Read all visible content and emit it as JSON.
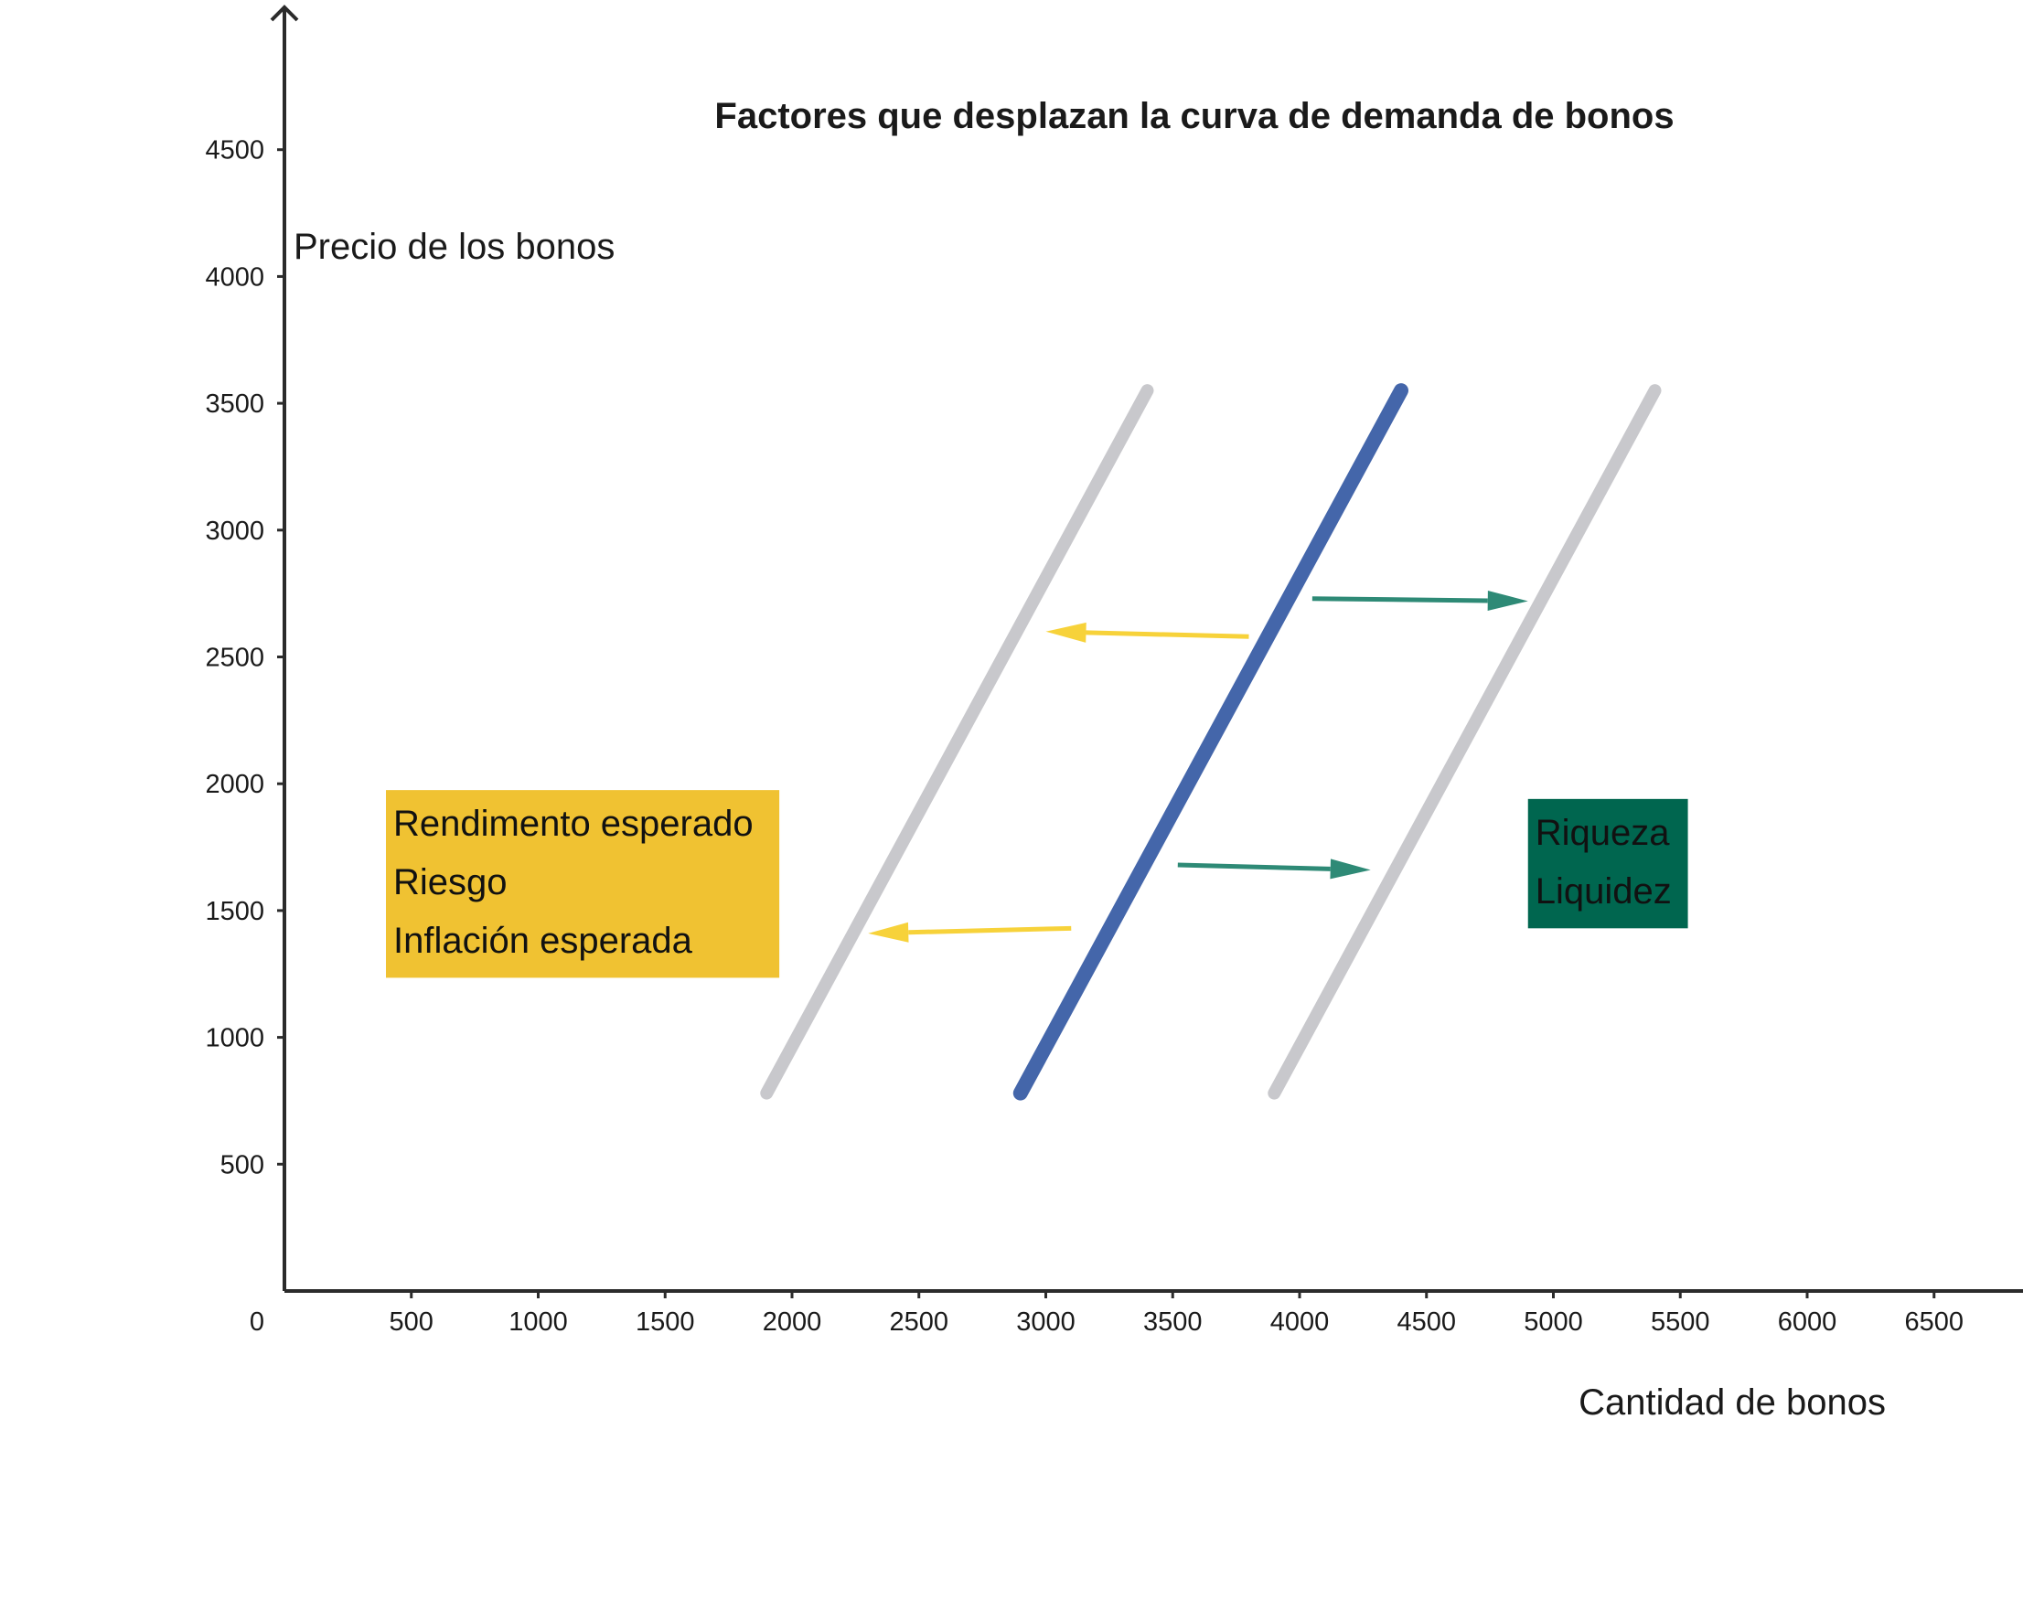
{
  "chart_data": {
    "type": "line",
    "title": "Factores que desplazan la curva de demanda de bonos",
    "xlabel": "Cantidad de bonos",
    "ylabel": "Precio de los bonos",
    "xlim": [
      0,
      6900
    ],
    "ylim": [
      0,
      5050
    ],
    "x_ticks": [
      0,
      500,
      1000,
      1500,
      2000,
      2500,
      3000,
      3500,
      4000,
      4500,
      5000,
      5500,
      6000,
      6500
    ],
    "y_ticks": [
      500,
      1000,
      1500,
      2000,
      2500,
      3000,
      3500,
      4000,
      4500
    ],
    "grid": false,
    "series": [
      {
        "role": "left-shift",
        "color": "#c8c8cc",
        "x": [
          1900,
          3400
        ],
        "y": [
          780,
          3550
        ]
      },
      {
        "role": "original",
        "color": "#4466aa",
        "x": [
          2900,
          4400
        ],
        "y": [
          780,
          3550
        ]
      },
      {
        "role": "right-shift",
        "color": "#c8c8cc",
        "x": [
          3900,
          5400
        ],
        "y": [
          780,
          3550
        ]
      }
    ],
    "arrows": [
      {
        "color": "#f7d23a",
        "from": [
          3800,
          2580
        ],
        "to": [
          3000,
          2600
        ]
      },
      {
        "color": "#f7d23a",
        "from": [
          3100,
          1430
        ],
        "to": [
          2300,
          1410
        ]
      },
      {
        "color": "#2e8a76",
        "from": [
          4050,
          2730
        ],
        "to": [
          4900,
          2720
        ]
      },
      {
        "color": "#2e8a76",
        "from": [
          3520,
          1680
        ],
        "to": [
          4280,
          1660
        ]
      }
    ],
    "boxes": [
      {
        "id": "decrease-factors",
        "fill": "#f0c232",
        "text_color": "#111111",
        "lines": [
          "Rendimento esperado",
          "Riesgo",
          "Inflación esperada"
        ],
        "anchor_data": [
          400,
          1975
        ],
        "extent_data": [
          1950,
          1235
        ]
      },
      {
        "id": "increase-factors",
        "fill": "#00664f",
        "text_color": "#111111",
        "lines": [
          "Riqueza",
          "Liquidez"
        ],
        "anchor_data": [
          4900,
          1940
        ],
        "extent_data": [
          5530,
          1430
        ]
      }
    ]
  }
}
